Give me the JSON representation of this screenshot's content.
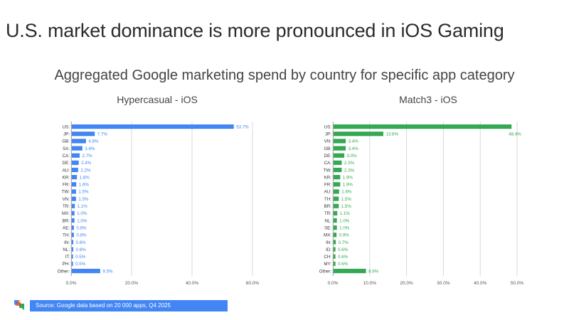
{
  "slide": {
    "title": "U.S. market dominance is more pronounced in iOS Gaming",
    "subtitle": "Aggregated Google marketing spend by country for specific app category",
    "source": "Source: Google data based on 20 000 apps, Q4 2025"
  },
  "colors": {
    "hypercasual": "#4285f4",
    "match3": "#34a853",
    "source_bar": "#4285f4"
  },
  "chart_data": [
    {
      "type": "bar",
      "orientation": "horizontal",
      "title": "Hypercasual - iOS",
      "color": "#4285f4",
      "categories": [
        "US:",
        "JP:",
        "GB:",
        "SA:",
        "CA:",
        "DE:",
        "AU:",
        "KR:",
        "FR:",
        "TW:",
        "VN:",
        "TR:",
        "MX:",
        "BR:",
        "AE:",
        "TH:",
        "IN:",
        "NL:",
        "IT:",
        "PH:",
        "Other:"
      ],
      "values": [
        53.7,
        7.7,
        4.8,
        3.6,
        2.7,
        2.4,
        2.2,
        1.8,
        1.6,
        1.5,
        1.5,
        1.1,
        1.0,
        1.0,
        0.8,
        0.8,
        0.6,
        0.6,
        0.5,
        0.5,
        9.5
      ],
      "labels": [
        "53.7%",
        "7.7%",
        "4.8%",
        "3.6%",
        "2.7%",
        "2.4%",
        "2.2%",
        "1.8%",
        "1.6%",
        "1.5%",
        "1.5%",
        "1.1%",
        "1.0%",
        "1.0%",
        "0.8%",
        "0.8%",
        "0.6%",
        "0.6%",
        "0.5%",
        "0.5%",
        "9.5%"
      ],
      "xlim": [
        0,
        60
      ],
      "xticks": [
        0,
        20,
        40,
        60
      ],
      "xtick_labels": [
        "0.0%",
        "20.0%",
        "40.0%",
        "60.0%"
      ],
      "grid": true,
      "legend": "none"
    },
    {
      "type": "bar",
      "orientation": "horizontal",
      "title": "Match3 - iOS",
      "color": "#34a853",
      "categories": [
        "US:",
        "JP:",
        "VN:",
        "GB:",
        "DE:",
        "CA:",
        "TW:",
        "KR:",
        "FR:",
        "AU:",
        "TH:",
        "BR:",
        "TR:",
        "NL:",
        "SE:",
        "MX:",
        "IN:",
        "ID:",
        "CH:",
        "MY:",
        "Other:"
      ],
      "values": [
        48.4,
        13.6,
        3.4,
        3.4,
        3.0,
        2.3,
        2.3,
        1.9,
        1.9,
        1.6,
        1.5,
        1.5,
        1.1,
        1.0,
        1.0,
        0.9,
        0.7,
        0.6,
        0.6,
        0.6,
        8.9
      ],
      "labels": [
        "48.4%",
        "13.6%",
        "3.4%",
        "3.4%",
        "3.0%",
        "2.3%",
        "2.3%",
        "1.9%",
        "1.9%",
        "1.6%",
        "1.5%",
        "1.5%",
        "1.1%",
        "1.0%",
        "1.0%",
        "0.9%",
        "0.7%",
        "0.6%",
        "0.6%",
        "0.6%",
        "8.9%"
      ],
      "xlim": [
        0,
        50
      ],
      "xticks": [
        0,
        10,
        20,
        30,
        40,
        50
      ],
      "xtick_labels": [
        "0.0%",
        "10.0%",
        "20.0%",
        "30.0%",
        "40.0%",
        "50.0%"
      ],
      "grid": true,
      "legend": "none"
    }
  ]
}
